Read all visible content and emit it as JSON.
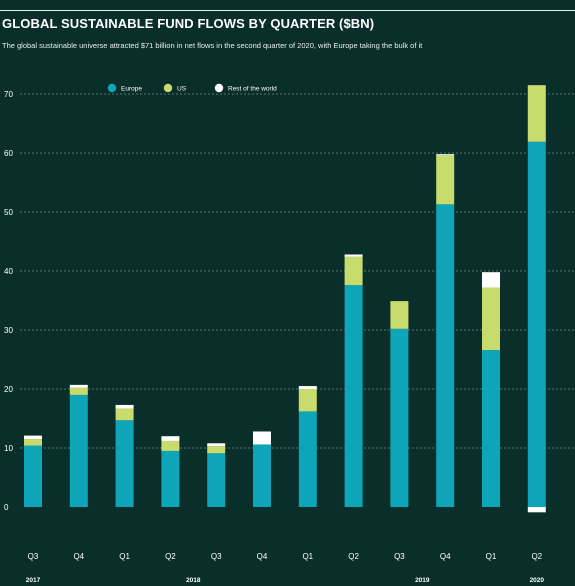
{
  "chart_data": {
    "type": "bar",
    "stacked": true,
    "title": "GLOBAL SUSTAINABLE FUND FLOWS BY QUARTER ($BN)",
    "subtitle": "The global sustainable universe attracted $71 billion in net flows in the second quarter of 2020, with Europe taking the bulk of it",
    "categories": [
      "Q3",
      "Q4",
      "Q1",
      "Q2",
      "Q3",
      "Q4",
      "Q1",
      "Q2",
      "Q3",
      "Q4",
      "Q1",
      "Q2"
    ],
    "years": [
      {
        "label": "2017",
        "index": 0
      },
      {
        "label": "2018",
        "index": 3.5
      },
      {
        "label": "2019",
        "index": 8.5
      },
      {
        "label": "2020",
        "index": 11
      }
    ],
    "series": [
      {
        "name": "Europe",
        "color": "#0ea5b8",
        "values": [
          10.4,
          19.0,
          14.7,
          9.5,
          9.1,
          10.6,
          16.2,
          37.6,
          30.2,
          51.3,
          26.6,
          61.9
        ]
      },
      {
        "name": "US",
        "color": "#c8dc6e",
        "values": [
          1.1,
          1.2,
          2.0,
          1.7,
          1.2,
          0,
          3.8,
          4.8,
          4.7,
          8.3,
          10.6,
          9.6
        ]
      },
      {
        "name": "Rest of the world",
        "color": "#ffffff",
        "values": [
          0.6,
          0.5,
          0.6,
          0.8,
          0.5,
          2.2,
          0.5,
          0.4,
          0,
          0.2,
          2.6,
          -0.9
        ]
      }
    ],
    "yticks": [
      0,
      10,
      20,
      30,
      40,
      50,
      60,
      70
    ],
    "ylim": [
      -6,
      73
    ],
    "grid": true,
    "legend": "top-left"
  }
}
